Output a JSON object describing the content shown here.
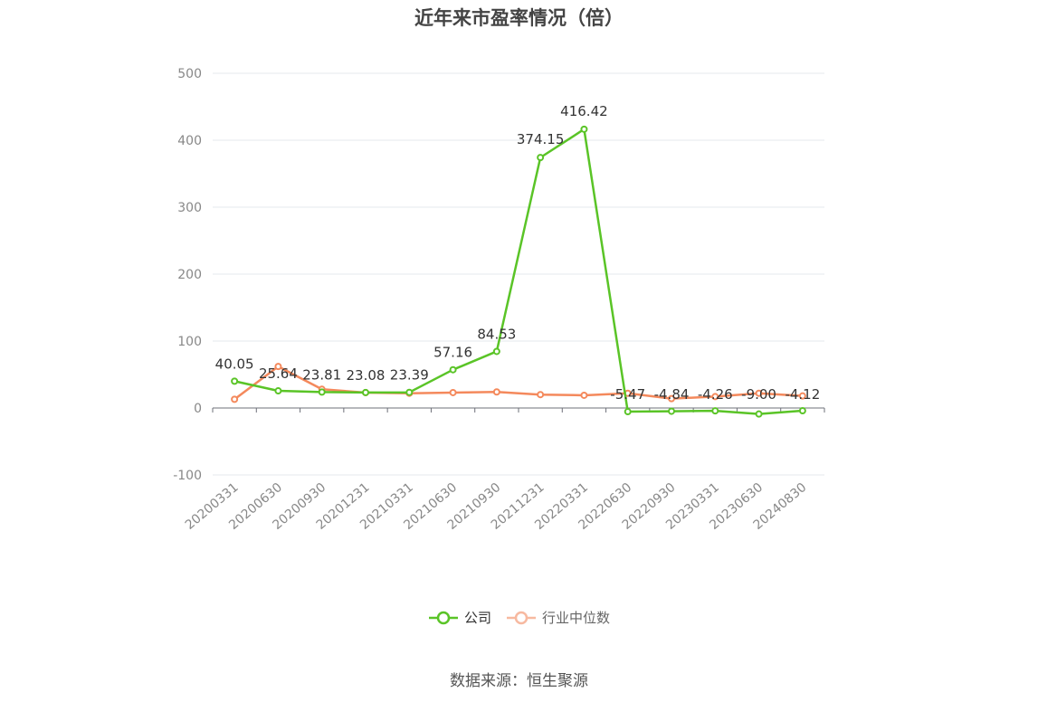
{
  "title": "近年来市盈率情况（倍）",
  "source": "数据来源：恒生聚源",
  "colors": {
    "company": "#5ac427",
    "industry": "#f4895c",
    "grid": "#e6e8ee",
    "axis": "#6e7079"
  },
  "legend": [
    {
      "name": "公司",
      "color": "#5ac427"
    },
    {
      "name": "行业中位数",
      "color": "#f7b9a0"
    }
  ],
  "chart_data": {
    "type": "line",
    "title": "近年来市盈率情况（倍）",
    "categories": [
      "20200331",
      "20200630",
      "20200930",
      "20201231",
      "20210331",
      "20210630",
      "20210930",
      "20211231",
      "20220331",
      "20220630",
      "20220930",
      "20230331",
      "20230630",
      "20240830"
    ],
    "y_ticks": [
      500,
      400,
      300,
      200,
      100,
      0,
      -100
    ],
    "ylim": [
      -100,
      500
    ],
    "grid": true,
    "legend_position": "bottom",
    "series": [
      {
        "name": "公司",
        "values": [
          40.05,
          25.64,
          23.81,
          23.08,
          23.39,
          57.16,
          84.53,
          374.15,
          416.42,
          -5.47,
          -4.84,
          -4.26,
          -9.0,
          -4.12
        ],
        "labels": [
          "40.05",
          "25.64",
          "23.81",
          "23.08",
          "23.39",
          "57.16",
          "84.53",
          "374.15",
          "416.42",
          "-5.47",
          "-4.84",
          "-4.26",
          "-9.00",
          "-4.12"
        ]
      },
      {
        "name": "行业中位数",
        "values": [
          13,
          62,
          28,
          23,
          22,
          23,
          24,
          20,
          19,
          22,
          14,
          17,
          22,
          18
        ]
      }
    ]
  }
}
